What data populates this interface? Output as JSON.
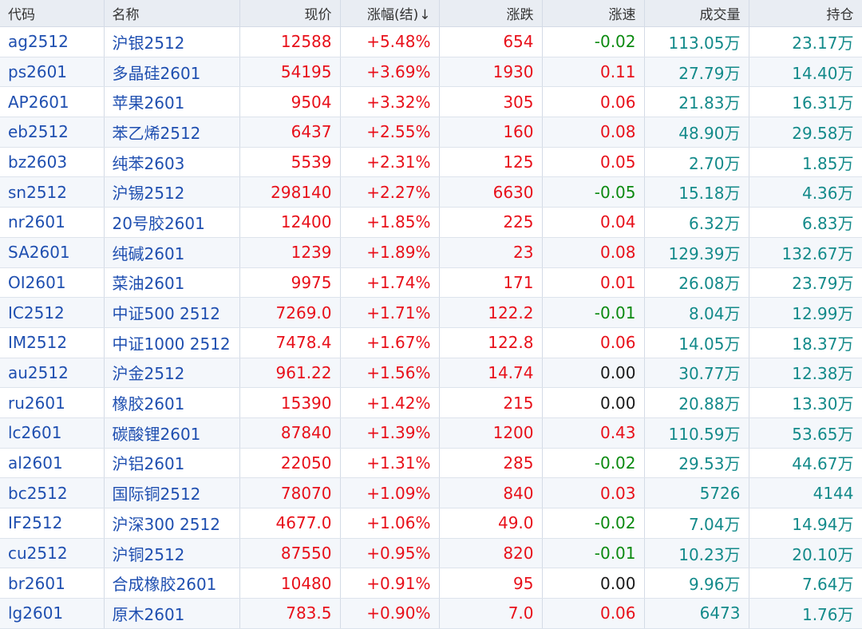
{
  "columns": [
    "代码",
    "名称",
    "现价",
    "涨幅(结)",
    "涨跌",
    "涨速",
    "成交量",
    "持仓"
  ],
  "sort_indicator": "↓",
  "colors": {
    "up": "#e8101a",
    "down": "#0b8a10",
    "neutral": "#1a1a1a",
    "link": "#1f4fb0",
    "volume": "#138a8a"
  },
  "rows": [
    {
      "code": "ag2512",
      "name": "沪银2512",
      "price": "12588",
      "change_pct": "+5.48%",
      "change": "654",
      "speed": "-0.02",
      "volume": "113.05万",
      "open_interest": "23.17万"
    },
    {
      "code": "ps2601",
      "name": "多晶硅2601",
      "price": "54195",
      "change_pct": "+3.69%",
      "change": "1930",
      "speed": "0.11",
      "volume": "27.79万",
      "open_interest": "14.40万"
    },
    {
      "code": "AP2601",
      "name": "苹果2601",
      "price": "9504",
      "change_pct": "+3.32%",
      "change": "305",
      "speed": "0.06",
      "volume": "21.83万",
      "open_interest": "16.31万"
    },
    {
      "code": "eb2512",
      "name": "苯乙烯2512",
      "price": "6437",
      "change_pct": "+2.55%",
      "change": "160",
      "speed": "0.08",
      "volume": "48.90万",
      "open_interest": "29.58万"
    },
    {
      "code": "bz2603",
      "name": "纯苯2603",
      "price": "5539",
      "change_pct": "+2.31%",
      "change": "125",
      "speed": "0.05",
      "volume": "2.70万",
      "open_interest": "1.85万"
    },
    {
      "code": "sn2512",
      "name": "沪锡2512",
      "price": "298140",
      "change_pct": "+2.27%",
      "change": "6630",
      "speed": "-0.05",
      "volume": "15.18万",
      "open_interest": "4.36万"
    },
    {
      "code": "nr2601",
      "name": "20号胶2601",
      "price": "12400",
      "change_pct": "+1.85%",
      "change": "225",
      "speed": "0.04",
      "volume": "6.32万",
      "open_interest": "6.83万"
    },
    {
      "code": "SA2601",
      "name": "纯碱2601",
      "price": "1239",
      "change_pct": "+1.89%",
      "change": "23",
      "speed": "0.08",
      "volume": "129.39万",
      "open_interest": "132.67万"
    },
    {
      "code": "OI2601",
      "name": "菜油2601",
      "price": "9975",
      "change_pct": "+1.74%",
      "change": "171",
      "speed": "0.01",
      "volume": "26.08万",
      "open_interest": "23.79万"
    },
    {
      "code": "IC2512",
      "name": "中证500 2512",
      "price": "7269.0",
      "change_pct": "+1.71%",
      "change": "122.2",
      "speed": "-0.01",
      "volume": "8.04万",
      "open_interest": "12.99万"
    },
    {
      "code": "IM2512",
      "name": "中证1000 2512",
      "price": "7478.4",
      "change_pct": "+1.67%",
      "change": "122.8",
      "speed": "0.06",
      "volume": "14.05万",
      "open_interest": "18.37万"
    },
    {
      "code": "au2512",
      "name": "沪金2512",
      "price": "961.22",
      "change_pct": "+1.56%",
      "change": "14.74",
      "speed": "0.00",
      "volume": "30.77万",
      "open_interest": "12.38万"
    },
    {
      "code": "ru2601",
      "name": "橡胶2601",
      "price": "15390",
      "change_pct": "+1.42%",
      "change": "215",
      "speed": "0.00",
      "volume": "20.88万",
      "open_interest": "13.30万"
    },
    {
      "code": "lc2601",
      "name": "碳酸锂2601",
      "price": "87840",
      "change_pct": "+1.39%",
      "change": "1200",
      "speed": "0.43",
      "volume": "110.59万",
      "open_interest": "53.65万"
    },
    {
      "code": "al2601",
      "name": "沪铝2601",
      "price": "22050",
      "change_pct": "+1.31%",
      "change": "285",
      "speed": "-0.02",
      "volume": "29.53万",
      "open_interest": "44.67万"
    },
    {
      "code": "bc2512",
      "name": "国际铜2512",
      "price": "78070",
      "change_pct": "+1.09%",
      "change": "840",
      "speed": "0.03",
      "volume": "5726",
      "open_interest": "4144"
    },
    {
      "code": "IF2512",
      "name": "沪深300 2512",
      "price": "4677.0",
      "change_pct": "+1.06%",
      "change": "49.0",
      "speed": "-0.02",
      "volume": "7.04万",
      "open_interest": "14.94万"
    },
    {
      "code": "cu2512",
      "name": "沪铜2512",
      "price": "87550",
      "change_pct": "+0.95%",
      "change": "820",
      "speed": "-0.01",
      "volume": "10.23万",
      "open_interest": "20.10万"
    },
    {
      "code": "br2601",
      "name": "合成橡胶2601",
      "price": "10480",
      "change_pct": "+0.91%",
      "change": "95",
      "speed": "0.00",
      "volume": "9.96万",
      "open_interest": "7.64万"
    },
    {
      "code": "lg2601",
      "name": "原木2601",
      "price": "783.5",
      "change_pct": "+0.90%",
      "change": "7.0",
      "speed": "0.06",
      "volume": "6473",
      "open_interest": "1.76万"
    }
  ]
}
